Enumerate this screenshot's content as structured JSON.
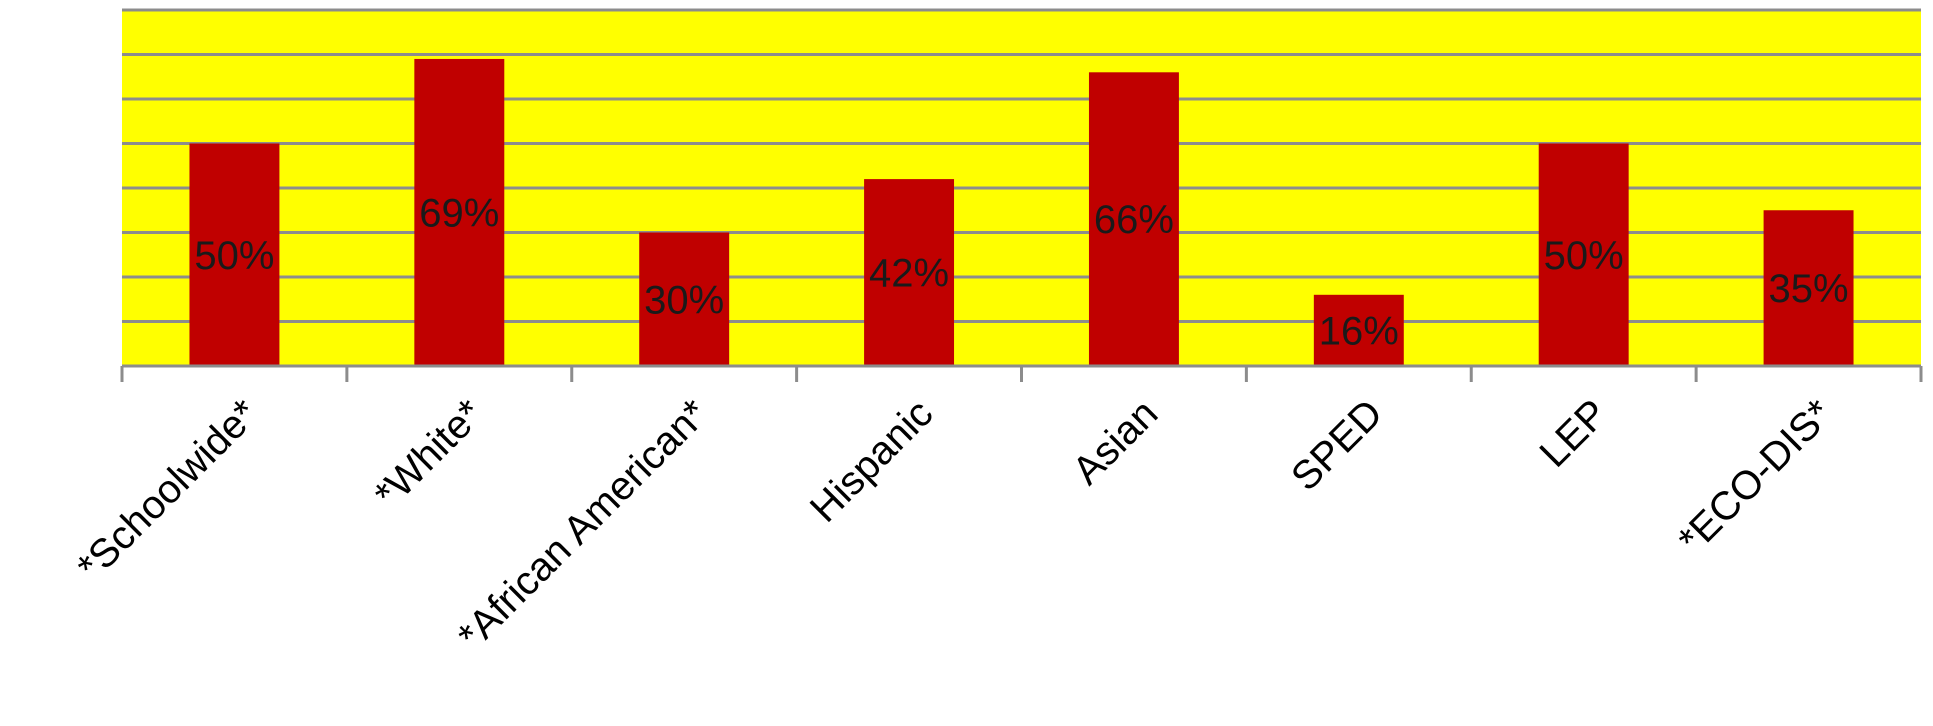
{
  "chart_data": {
    "type": "bar",
    "title": "",
    "xlabel": "",
    "ylabel": "",
    "categories": [
      "*Schoolwide*",
      "*White*",
      "*African American*",
      "Hispanic",
      "Asian",
      "SPED",
      "LEP",
      "*ECO-DIS*"
    ],
    "values": [
      50,
      69,
      30,
      42,
      66,
      16,
      50,
      35
    ],
    "data_labels": [
      "50%",
      "69%",
      "30%",
      "42%",
      "66%",
      "16%",
      "50%",
      "35%"
    ],
    "ylim": [
      0,
      80
    ],
    "y_gridline_step": 10,
    "y_tick_labels_shown": false,
    "grid": true,
    "legend": "none",
    "colors": {
      "bar": "#c00000",
      "plot_background": "#ffff00",
      "gridline": "#8c8c8c",
      "axis": "#8c8c8c"
    }
  }
}
